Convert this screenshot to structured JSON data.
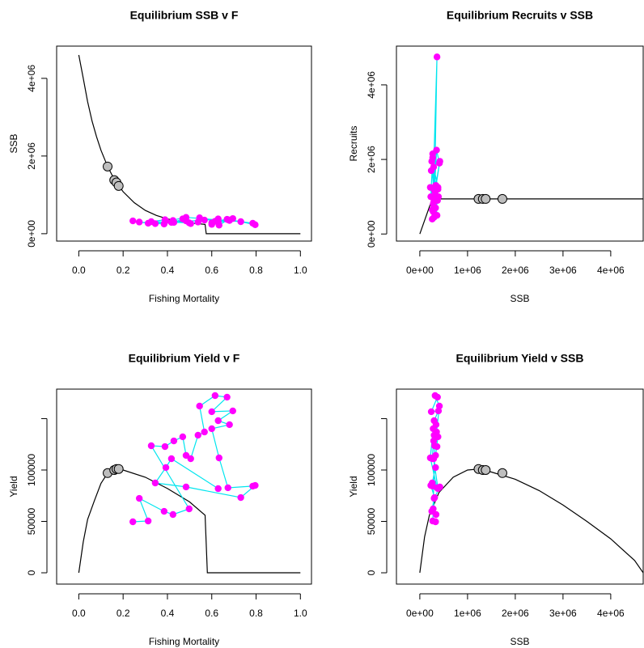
{
  "chart_data": [
    {
      "type": "scatter",
      "title": "Equilibrium SSB v F",
      "xlabel": "Fishing Mortality",
      "ylabel": "SSB",
      "xlim": [
        -0.1,
        1.05
      ],
      "ylim": [
        -190000,
        4830000
      ],
      "xticks": [
        {
          "value": 0,
          "label": "0.0"
        },
        0.2,
        0.4,
        0.6,
        0.8,
        {
          "value": 1,
          "label": "1.0"
        }
      ],
      "yticks": [
        {
          "value": 0,
          "label": "0e+00"
        },
        {
          "value": 2000000,
          "label": "2e+06"
        },
        {
          "value": 4000000,
          "label": "4e+06"
        }
      ],
      "curve": {
        "color": "#000000",
        "x": [
          0,
          0.02,
          0.04,
          0.06,
          0.08,
          0.1,
          0.13,
          0.16,
          0.2,
          0.25,
          0.3,
          0.35,
          0.4,
          0.45,
          0.5,
          0.57,
          0.575,
          1.0
        ],
        "values": [
          4600000,
          4000000,
          3400000,
          2900000,
          2500000,
          2150000,
          1730000,
          1400000,
          1080000,
          800000,
          600000,
          470000,
          380000,
          320000,
          280000,
          240000,
          0,
          0
        ]
      },
      "observed": {
        "color": "#ff00ff",
        "line_color": "#00e5ee",
        "x": [
          0.244,
          0.313,
          0.273,
          0.385,
          0.425,
          0.498,
          0.327,
          0.389,
          0.429,
          0.469,
          0.484,
          0.505,
          0.538,
          0.567,
          0.545,
          0.615,
          0.669,
          0.6,
          0.695,
          0.629,
          0.68,
          0.6,
          0.633,
          0.673,
          0.785,
          0.796,
          0.731,
          0.484,
          0.345,
          0.393,
          0.418,
          0.629
        ],
        "values": [
          330000,
          270000,
          300000,
          250000,
          340000,
          280000,
          310000,
          360000,
          290000,
          380000,
          330000,
          260000,
          300000,
          350000,
          410000,
          320000,
          370000,
          240000,
          390000,
          300000,
          340000,
          280000,
          220000,
          360000,
          270000,
          230000,
          310000,
          420000,
          260000,
          330000,
          290000,
          380000
        ]
      },
      "reference": {
        "color": "#bebebe",
        "x": [
          0.13,
          0.16,
          0.17,
          0.18
        ],
        "values": [
          1730000,
          1380000,
          1320000,
          1230000
        ]
      }
    },
    {
      "type": "scatter",
      "title": "Equilibrium Recruits v SSB",
      "xlabel": "SSB",
      "ylabel": "Recruits",
      "xlim": [
        -490000,
        4680000
      ],
      "ylim": [
        -190000,
        5040000
      ],
      "xticks": [
        {
          "value": 0,
          "label": "0e+00"
        },
        {
          "value": 1000000,
          "label": "1e+06"
        },
        {
          "value": 2000000,
          "label": "2e+06"
        },
        {
          "value": 3000000,
          "label": "3e+06"
        },
        {
          "value": 4000000,
          "label": "4e+06"
        }
      ],
      "yticks": [
        {
          "value": 0,
          "label": "0e+00"
        },
        {
          "value": 2000000,
          "label": "2e+06"
        },
        {
          "value": 4000000,
          "label": "4e+06"
        }
      ],
      "curve": {
        "color": "#000000",
        "x": [
          0,
          260000,
          4680000
        ],
        "values": [
          0,
          940000,
          940000
        ]
      },
      "observed": {
        "color": "#ff00ff",
        "line_color": "#00e5ee",
        "x": [
          330000,
          270000,
          300000,
          250000,
          340000,
          280000,
          310000,
          360000,
          290000,
          380000,
          330000,
          260000,
          300000,
          350000,
          410000,
          320000,
          370000,
          240000,
          390000,
          300000,
          340000,
          280000,
          220000,
          360000,
          270000,
          230000,
          310000,
          420000,
          260000,
          330000,
          290000,
          380000
        ],
        "values": [
          1300000,
          2150000,
          900000,
          1950000,
          1000000,
          600000,
          1200000,
          4750000,
          1800000,
          1250000,
          700000,
          400000,
          1000000,
          2250000,
          1900000,
          1150000,
          900000,
          1700000,
          1000000,
          450000,
          1300000,
          800000,
          1250000,
          500000,
          2050000,
          1000000,
          1150000,
          1950000,
          650000,
          1050000,
          850000,
          1200000
        ]
      },
      "reference": {
        "color": "#bebebe",
        "x": [
          1230000,
          1320000,
          1380000,
          1730000
        ],
        "values": [
          940000,
          940000,
          940000,
          940000
        ]
      }
    },
    {
      "type": "scatter",
      "title": "Equilibrium Yield v F",
      "xlabel": "Fishing Mortality",
      "ylabel": "Yield",
      "xlim": [
        -0.1,
        1.05
      ],
      "ylim": [
        -11000,
        178700
      ],
      "xticks": [
        {
          "value": 0,
          "label": "0.0"
        },
        0.2,
        0.4,
        0.6,
        0.8,
        {
          "value": 1,
          "label": "1.0"
        }
      ],
      "yticks": [
        0,
        50000,
        100000,
        {
          "value": 150000,
          "label": null
        }
      ],
      "curve": {
        "color": "#000000",
        "x": [
          0,
          0.02,
          0.04,
          0.07,
          0.1,
          0.13,
          0.18,
          0.2,
          0.3,
          0.4,
          0.5,
          0.57,
          0.58,
          1.0
        ],
        "values": [
          0,
          30000,
          52000,
          70000,
          87000,
          97000,
          101000,
          100000,
          93000,
          82000,
          69000,
          56000,
          0,
          0
        ]
      },
      "observed": {
        "color": "#ff00ff",
        "line_color": "#00e5ee",
        "x": [
          0.244,
          0.313,
          0.273,
          0.385,
          0.425,
          0.498,
          0.327,
          0.389,
          0.429,
          0.469,
          0.484,
          0.505,
          0.538,
          0.567,
          0.545,
          0.615,
          0.669,
          0.6,
          0.695,
          0.629,
          0.68,
          0.6,
          0.633,
          0.673,
          0.785,
          0.796,
          0.731,
          0.484,
          0.345,
          0.393,
          0.418,
          0.629
        ],
        "values": [
          49600,
          50400,
          72400,
          59800,
          56700,
          62200,
          123600,
          122800,
          128300,
          132300,
          114200,
          111000,
          133900,
          137000,
          162200,
          172400,
          170900,
          156700,
          157500,
          148000,
          144100,
          140200,
          111800,
          82700,
          84300,
          85000,
          73200,
          83500,
          87400,
          102400,
          111000,
          81900
        ]
      },
      "reference": {
        "color": "#bebebe",
        "x": [
          0.13,
          0.16,
          0.17,
          0.18
        ],
        "values": [
          97000,
          100000,
          101000,
          101000
        ]
      }
    },
    {
      "type": "scatter",
      "title": "Equilibrium Yield v SSB",
      "xlabel": "SSB",
      "ylabel": "Yield",
      "xlim": [
        -490000,
        4680000
      ],
      "ylim": [
        -11000,
        178700
      ],
      "xticks": [
        {
          "value": 0,
          "label": "0e+00"
        },
        {
          "value": 1000000,
          "label": "1e+06"
        },
        {
          "value": 2000000,
          "label": "2e+06"
        },
        {
          "value": 3000000,
          "label": "3e+06"
        },
        {
          "value": 4000000,
          "label": "4e+06"
        }
      ],
      "yticks": [
        0,
        50000,
        100000,
        {
          "value": 150000,
          "label": null
        }
      ],
      "curve": {
        "color": "#000000",
        "x": [
          0,
          100000,
          200000,
          400000,
          700000,
          1000000,
          1250000,
          1500000,
          2000000,
          2500000,
          3000000,
          3500000,
          4000000,
          4500000,
          4680000
        ],
        "values": [
          0,
          35000,
          56000,
          78000,
          93000,
          100000,
          101000,
          98000,
          91000,
          80000,
          66000,
          50000,
          33000,
          12000,
          0
        ]
      },
      "observed": {
        "color": "#ff00ff",
        "line_color": "#00e5ee",
        "x": [
          330000,
          270000,
          300000,
          250000,
          340000,
          280000,
          310000,
          360000,
          290000,
          380000,
          330000,
          260000,
          300000,
          350000,
          410000,
          320000,
          370000,
          240000,
          390000,
          300000,
          340000,
          280000,
          220000,
          360000,
          270000,
          230000,
          310000,
          420000,
          260000,
          330000,
          290000,
          380000
        ],
        "values": [
          49600,
          50400,
          72400,
          59800,
          56700,
          62200,
          123600,
          122800,
          128300,
          132300,
          114200,
          111000,
          133900,
          137000,
          162200,
          172400,
          170900,
          156700,
          157500,
          148000,
          144100,
          140200,
          111800,
          82700,
          84300,
          85000,
          73200,
          83500,
          87400,
          102400,
          111000,
          81900
        ]
      },
      "reference": {
        "color": "#bebebe",
        "x": [
          1230000,
          1320000,
          1380000,
          1730000
        ],
        "values": [
          101000,
          100000,
          100000,
          97000
        ]
      }
    }
  ]
}
